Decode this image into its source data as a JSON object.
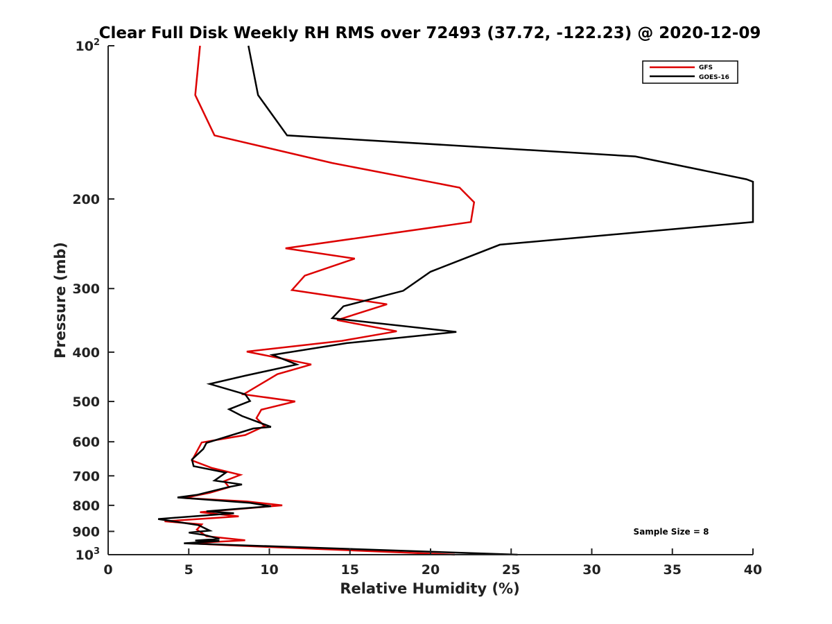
{
  "chart_data": {
    "type": "line",
    "title": "Clear Full Disk Weekly RH RMS over 72493 (37.72, -122.23) @ 2020-12-09",
    "xlabel": "Relative Humidity (%)",
    "ylabel": "Pressure (mb)",
    "xlim": [
      0,
      40
    ],
    "ylim": [
      100,
      1000
    ],
    "y_scale": "log",
    "y_reversed": true,
    "x_ticks": [
      "0",
      "5",
      "10",
      "15",
      "20",
      "25",
      "30",
      "35",
      "40"
    ],
    "y_ticks": [
      {
        "value": 100,
        "base": "10",
        "exp": "2"
      },
      {
        "value": 200,
        "label": "200"
      },
      {
        "value": 300,
        "label": "300"
      },
      {
        "value": 400,
        "label": "400"
      },
      {
        "value": 500,
        "label": "500"
      },
      {
        "value": 600,
        "label": "600"
      },
      {
        "value": 700,
        "label": "700"
      },
      {
        "value": 800,
        "label": "800"
      },
      {
        "value": 900,
        "label": "900"
      },
      {
        "value": 1000,
        "base": "10",
        "exp": "3"
      }
    ],
    "legend_position": "top-right",
    "annotation": "Sample Size = 8",
    "series": [
      {
        "name": "GFS",
        "color": "#dd0000",
        "points": [
          [
            5.7,
            100
          ],
          [
            5.4,
            125
          ],
          [
            6.6,
            150
          ],
          [
            13.9,
            170
          ],
          [
            21.8,
            190
          ],
          [
            22.7,
            203
          ],
          [
            22.5,
            222
          ],
          [
            11.0,
            250
          ],
          [
            15.3,
            262
          ],
          [
            12.2,
            283
          ],
          [
            11.4,
            302
          ],
          [
            17.3,
            322
          ],
          [
            14.2,
            346
          ],
          [
            17.9,
            364
          ],
          [
            14.5,
            380
          ],
          [
            8.6,
            399
          ],
          [
            12.6,
            423
          ],
          [
            10.5,
            442
          ],
          [
            8.4,
            484
          ],
          [
            11.6,
            500
          ],
          [
            9.5,
            519
          ],
          [
            9.2,
            539
          ],
          [
            9.7,
            559
          ],
          [
            8.5,
            582
          ],
          [
            5.8,
            602
          ],
          [
            5.2,
            653
          ],
          [
            6.4,
            675
          ],
          [
            8.2,
            697
          ],
          [
            7.2,
            717
          ],
          [
            7.5,
            737
          ],
          [
            6.3,
            756
          ],
          [
            4.7,
            774
          ],
          [
            8.6,
            786
          ],
          [
            10.8,
            800
          ],
          [
            5.7,
            825
          ],
          [
            8.1,
            841
          ],
          [
            3.5,
            860
          ],
          [
            5.8,
            872
          ],
          [
            5.5,
            893
          ],
          [
            6.1,
            920
          ],
          [
            8.5,
            937
          ],
          [
            5.0,
            950
          ],
          [
            8.0,
            960
          ],
          [
            21.5,
            1000
          ]
        ]
      },
      {
        "name": "GOES-16",
        "color": "#000000",
        "points": [
          [
            8.7,
            100
          ],
          [
            9.3,
            125
          ],
          [
            11.1,
            150
          ],
          [
            32.7,
            165
          ],
          [
            39.6,
            183
          ],
          [
            40.0,
            185
          ],
          [
            40.0,
            222
          ],
          [
            24.3,
            246
          ],
          [
            20.0,
            278
          ],
          [
            18.3,
            303
          ],
          [
            14.6,
            325
          ],
          [
            13.9,
            343
          ],
          [
            21.6,
            365
          ],
          [
            14.8,
            384
          ],
          [
            10.2,
            405
          ],
          [
            11.7,
            423
          ],
          [
            8.5,
            445
          ],
          [
            6.3,
            462
          ],
          [
            8.5,
            484
          ],
          [
            8.8,
            499
          ],
          [
            7.5,
            518
          ],
          [
            8.3,
            534
          ],
          [
            10.1,
            561
          ],
          [
            9.0,
            565
          ],
          [
            6.1,
            603
          ],
          [
            5.9,
            620
          ],
          [
            5.2,
            650
          ],
          [
            5.3,
            670
          ],
          [
            7.3,
            690
          ],
          [
            6.6,
            715
          ],
          [
            8.3,
            728
          ],
          [
            7.5,
            736
          ],
          [
            5.5,
            763
          ],
          [
            4.3,
            772
          ],
          [
            8.8,
            791
          ],
          [
            10.1,
            803
          ],
          [
            6.1,
            822
          ],
          [
            7.8,
            829
          ],
          [
            3.1,
            851
          ],
          [
            5.6,
            875
          ],
          [
            6.3,
            897
          ],
          [
            5.0,
            905
          ],
          [
            6.0,
            915
          ],
          [
            6.9,
            931
          ],
          [
            5.4,
            938
          ],
          [
            6.9,
            940
          ],
          [
            4.7,
            950
          ],
          [
            25.4,
            1000
          ]
        ]
      }
    ]
  }
}
